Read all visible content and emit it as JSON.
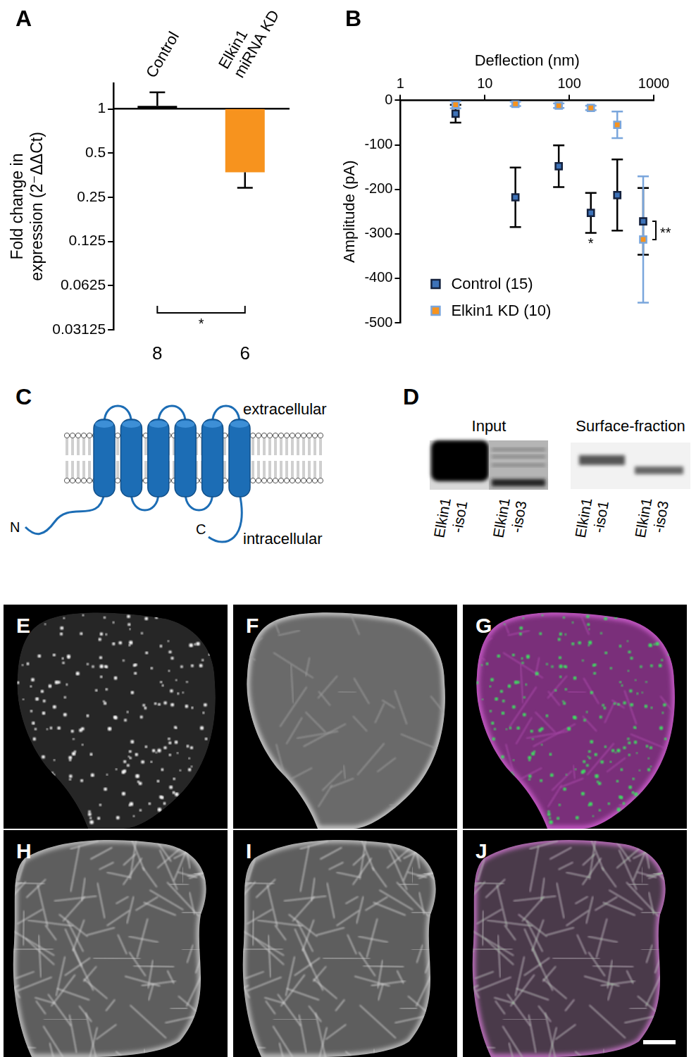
{
  "panel_labels": [
    "A",
    "B",
    "C",
    "D",
    "E",
    "F",
    "G",
    "H",
    "I",
    "J"
  ],
  "chart_data": [
    {
      "type": "bar",
      "categories": [
        "Control",
        "Elkin1 miRNA KD"
      ],
      "values": [
        1.05,
        0.37
      ],
      "baseline": 1,
      "error_ends": [
        1.3,
        0.29
      ],
      "colors": [
        "#000000",
        "#f7931e"
      ],
      "ylabel": [
        "Fold change in",
        "expression (2⁻ΔΔCt)"
      ],
      "log": "y",
      "ylim": [
        0.03125,
        1.5
      ],
      "yticks": [
        0.03125,
        0.0625,
        0.125,
        0.25,
        0.5,
        1
      ],
      "n": [
        8,
        6
      ],
      "annotations": [
        {
          "text": "*",
          "between": [
            0,
            1
          ]
        }
      ],
      "grid": false
    },
    {
      "type": "scatter",
      "xlabel": "Deflection (nm)",
      "ylabel": "Amplitude (pA)",
      "x": [
        4.5,
        23,
        75,
        180,
        370,
        750
      ],
      "series": [
        {
          "name": "Control (15)",
          "color": "#3d72b8",
          "marker": "square",
          "values": [
            -30,
            -218,
            -148,
            -253,
            -213,
            -272
          ],
          "errors": [
            20,
            67,
            47,
            45,
            80,
            75
          ]
        },
        {
          "name": "Elkin1 KD (10)",
          "color": "#f7931e",
          "marker": "square",
          "values": [
            -10,
            -8,
            -12,
            -17,
            -55,
            -313
          ],
          "errors": [
            8,
            5,
            5,
            5,
            30,
            142
          ]
        }
      ],
      "log": "x",
      "xlim": [
        1,
        1000
      ],
      "xticks": [
        1,
        10,
        100,
        1000
      ],
      "ylim": [
        -500,
        0
      ],
      "yticks": [
        -500,
        -400,
        -300,
        -200,
        -100,
        0
      ],
      "legend": "lower left",
      "grid": false,
      "annotations": [
        {
          "text": "*",
          "series": 0,
          "index": 3
        },
        {
          "text": "**",
          "series": [
            0,
            1
          ],
          "index": 5
        }
      ]
    }
  ],
  "diagram": {
    "top_label": "extracellular",
    "bottom_label": "intracellular",
    "n_terminus": "N",
    "c_terminus": "C",
    "helices": 6
  },
  "blot": {
    "panels": [
      {
        "title": "Input",
        "lanes": [
          "Elkin1-iso1",
          "Elkin1-iso3"
        ]
      },
      {
        "title": "Surface-fraction",
        "lanes": [
          "Elkin1-iso1",
          "Elkin1-iso3"
        ]
      }
    ]
  }
}
